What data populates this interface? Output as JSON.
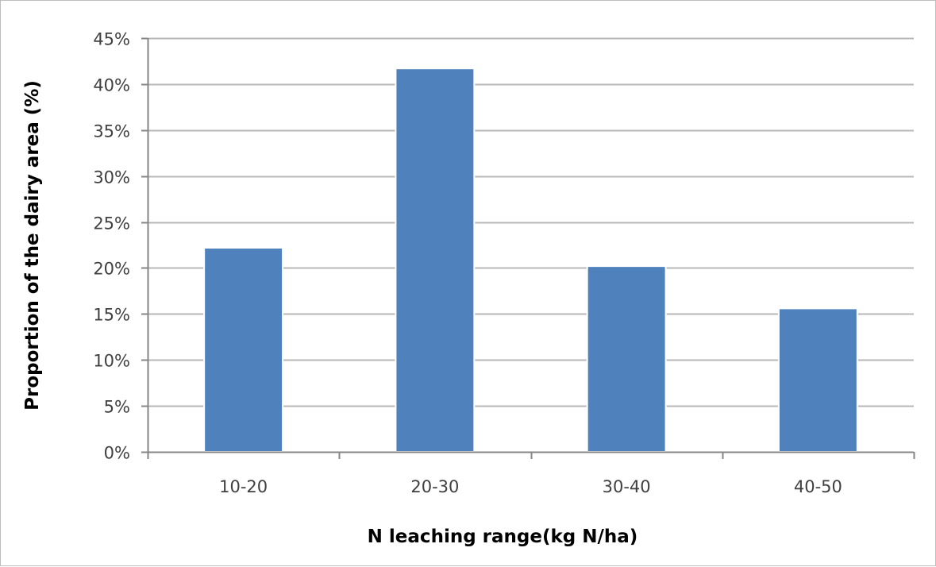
{
  "chart_data": {
    "type": "bar",
    "title": "",
    "xlabel": "N leaching range(kg N/ha)",
    "ylabel": "Proportion of the dairy area (%)",
    "categories": [
      "10-20",
      "20-30",
      "30-40",
      "40-50"
    ],
    "values": [
      0.222,
      0.417,
      0.202,
      0.156
    ],
    "y_unit": "fraction",
    "ylim": [
      0,
      0.45
    ],
    "yticks": [
      0,
      0.05,
      0.1,
      0.15,
      0.2,
      0.25,
      0.3,
      0.35,
      0.4,
      0.45
    ],
    "ytick_labels": [
      "0%",
      "5%",
      "10%",
      "15%",
      "20%",
      "25%",
      "30%",
      "35%",
      "40%",
      "45%"
    ],
    "grid": "horizontal",
    "legend": "none",
    "colors": {
      "bar": "#4f81bd",
      "bar_edge": "#ffffff",
      "grid": "#b7b7b7",
      "axis": "#868686",
      "tick_text": "#404040",
      "title_text": "#000000",
      "frame": "#bdbdbd"
    }
  }
}
